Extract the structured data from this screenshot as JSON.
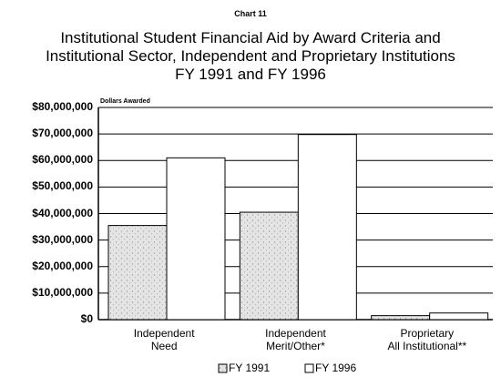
{
  "chart_data": {
    "type": "bar",
    "label": "Chart 11",
    "title": "Institutional Student Financial Aid by Award Criteria and\nInstitutional Sector, Independent and Proprietary Institutions\nFY 1991 and FY 1996",
    "ylabel": "Dollars Awarded",
    "categories": [
      "Independent\nNeed",
      "Independent\nMerit/Other*",
      "Proprietary\nAll Institutional**"
    ],
    "series": [
      {
        "name": "FY 1991",
        "color": "#e4e4e4",
        "values": [
          35500000,
          40500000,
          1500000
        ]
      },
      {
        "name": "FY 1996",
        "color": "#ffffff",
        "values": [
          61000000,
          69800000,
          2500000
        ]
      }
    ],
    "ylim": [
      0,
      80000000
    ],
    "yticks": [
      {
        "value": 0,
        "label": "$0"
      },
      {
        "value": 10000000,
        "label": "$10,000,000"
      },
      {
        "value": 20000000,
        "label": "$20,000,000"
      },
      {
        "value": 30000000,
        "label": "$30,000,000"
      },
      {
        "value": 40000000,
        "label": "$40,000,000"
      },
      {
        "value": 50000000,
        "label": "$50,000,000"
      },
      {
        "value": 60000000,
        "label": "$60,000,000"
      },
      {
        "value": 70000000,
        "label": "$70,000,000"
      },
      {
        "value": 80000000,
        "label": "$80,000,000"
      }
    ],
    "grid": true,
    "legend": "bottom"
  }
}
